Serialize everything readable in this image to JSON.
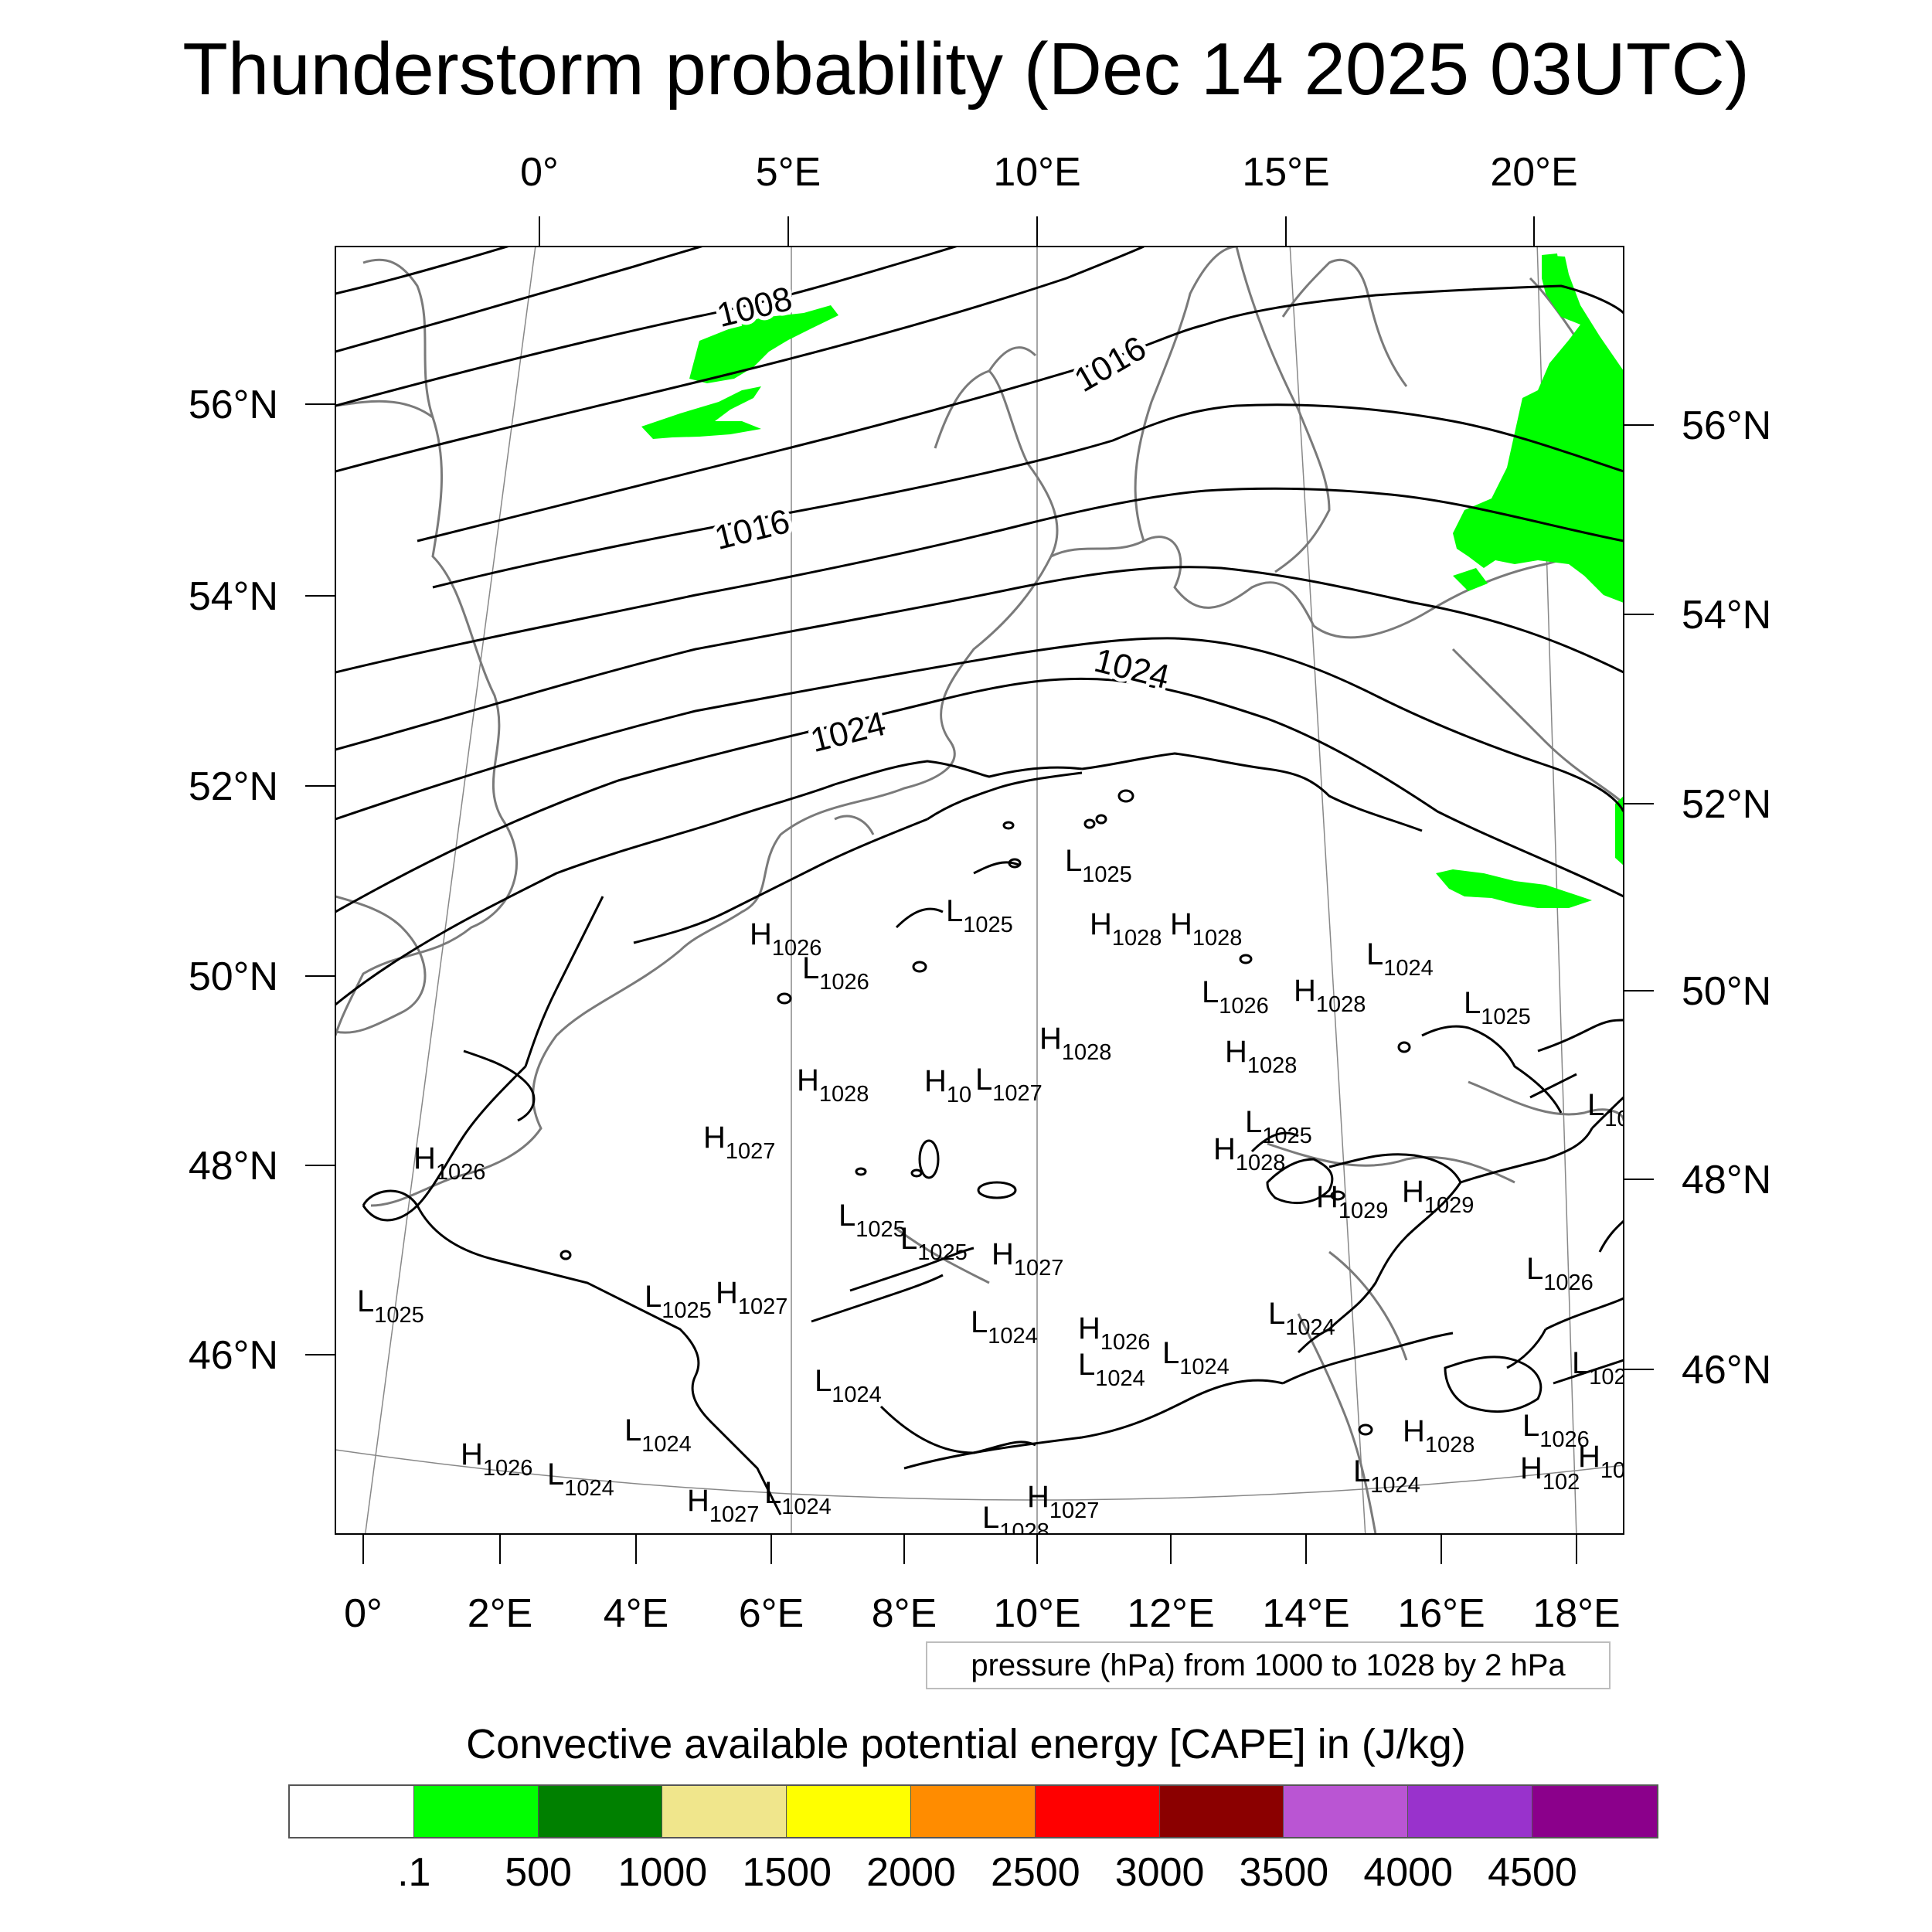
{
  "title": "Thunderstorm probability (Dec 14 2025 03UTC)",
  "top_axis_labels": [
    "0°",
    "5°E",
    "10°E",
    "15°E",
    "20°E"
  ],
  "bottom_axis_labels": [
    "0°",
    "2°E",
    "4°E",
    "6°E",
    "8°E",
    "10°E",
    "12°E",
    "14°E",
    "16°E",
    "18°E"
  ],
  "left_axis_labels": [
    "56°N",
    "54°N",
    "52°N",
    "50°N",
    "48°N",
    "46°N"
  ],
  "right_axis_labels": [
    "56°N",
    "54°N",
    "52°N",
    "50°N",
    "48°N",
    "46°N"
  ],
  "isobar_labels": [
    "1008",
    "1016",
    "1016",
    "1024",
    "1024"
  ],
  "pressure_centers": [
    {
      "t": "L",
      "v": "1025"
    },
    {
      "t": "L",
      "v": "1025"
    },
    {
      "t": "H",
      "v": "1028"
    },
    {
      "t": "H",
      "v": "1028"
    },
    {
      "t": "H",
      "v": "1026"
    },
    {
      "t": "L",
      "v": "1026"
    },
    {
      "t": "L",
      "v": "1024"
    },
    {
      "t": "L",
      "v": "1026"
    },
    {
      "t": "H",
      "v": "1028"
    },
    {
      "t": "L",
      "v": "1025"
    },
    {
      "t": "H",
      "v": "1028"
    },
    {
      "t": "H",
      "v": "1028"
    },
    {
      "t": "H",
      "v": "1028"
    },
    {
      "t": "H",
      "v": "10"
    },
    {
      "t": "L",
      "v": "1027"
    },
    {
      "t": "L",
      "v": "10"
    },
    {
      "t": "L",
      "v": "1025"
    },
    {
      "t": "H",
      "v": "1027"
    },
    {
      "t": "H",
      "v": "1028"
    },
    {
      "t": "H",
      "v": "1026"
    },
    {
      "t": "H",
      "v": "1029"
    },
    {
      "t": "H",
      "v": "1029"
    },
    {
      "t": "L",
      "v": "1025"
    },
    {
      "t": "L",
      "v": "1025"
    },
    {
      "t": "H",
      "v": "1027"
    },
    {
      "t": "L",
      "v": "1026"
    },
    {
      "t": "L",
      "v": "1025"
    },
    {
      "t": "L",
      "v": "1025"
    },
    {
      "t": "H",
      "v": "1027"
    },
    {
      "t": "L",
      "v": "1024"
    },
    {
      "t": "L",
      "v": "1024"
    },
    {
      "t": "H",
      "v": "1026"
    },
    {
      "t": "L",
      "v": "1024"
    },
    {
      "t": "L",
      "v": "1024"
    },
    {
      "t": "L",
      "v": "1024"
    },
    {
      "t": "L",
      "v": "102"
    },
    {
      "t": "L",
      "v": "1024"
    },
    {
      "t": "H",
      "v": "1028"
    },
    {
      "t": "L",
      "v": "1026"
    },
    {
      "t": "H",
      "v": "1026"
    },
    {
      "t": "L",
      "v": "1024"
    },
    {
      "t": "L",
      "v": "1024"
    },
    {
      "t": "H",
      "v": "1027"
    },
    {
      "t": "L",
      "v": "1024"
    },
    {
      "t": "H",
      "v": "1027"
    },
    {
      "t": "L",
      "v": "1028"
    },
    {
      "t": "H",
      "v": "102"
    },
    {
      "t": "H",
      "v": "10"
    }
  ],
  "info_text": "pressure (hPa) from 1000 to 1028 by 2 hPa",
  "colorbar": {
    "title": "Convective available potential energy [CAPE] in (J/kg)",
    "colors": [
      "#ffffff",
      "#00ff00",
      "#008000",
      "#f0e68c",
      "#ffff00",
      "#ff8c00",
      "#ff0000",
      "#8b0000",
      "#ba55d3",
      "#9932cc",
      "#8b008b"
    ],
    "labels": [
      ".1",
      "500",
      "1000",
      "1500",
      "2000",
      "2500",
      "3000",
      "3500",
      "4000",
      "4500"
    ]
  }
}
